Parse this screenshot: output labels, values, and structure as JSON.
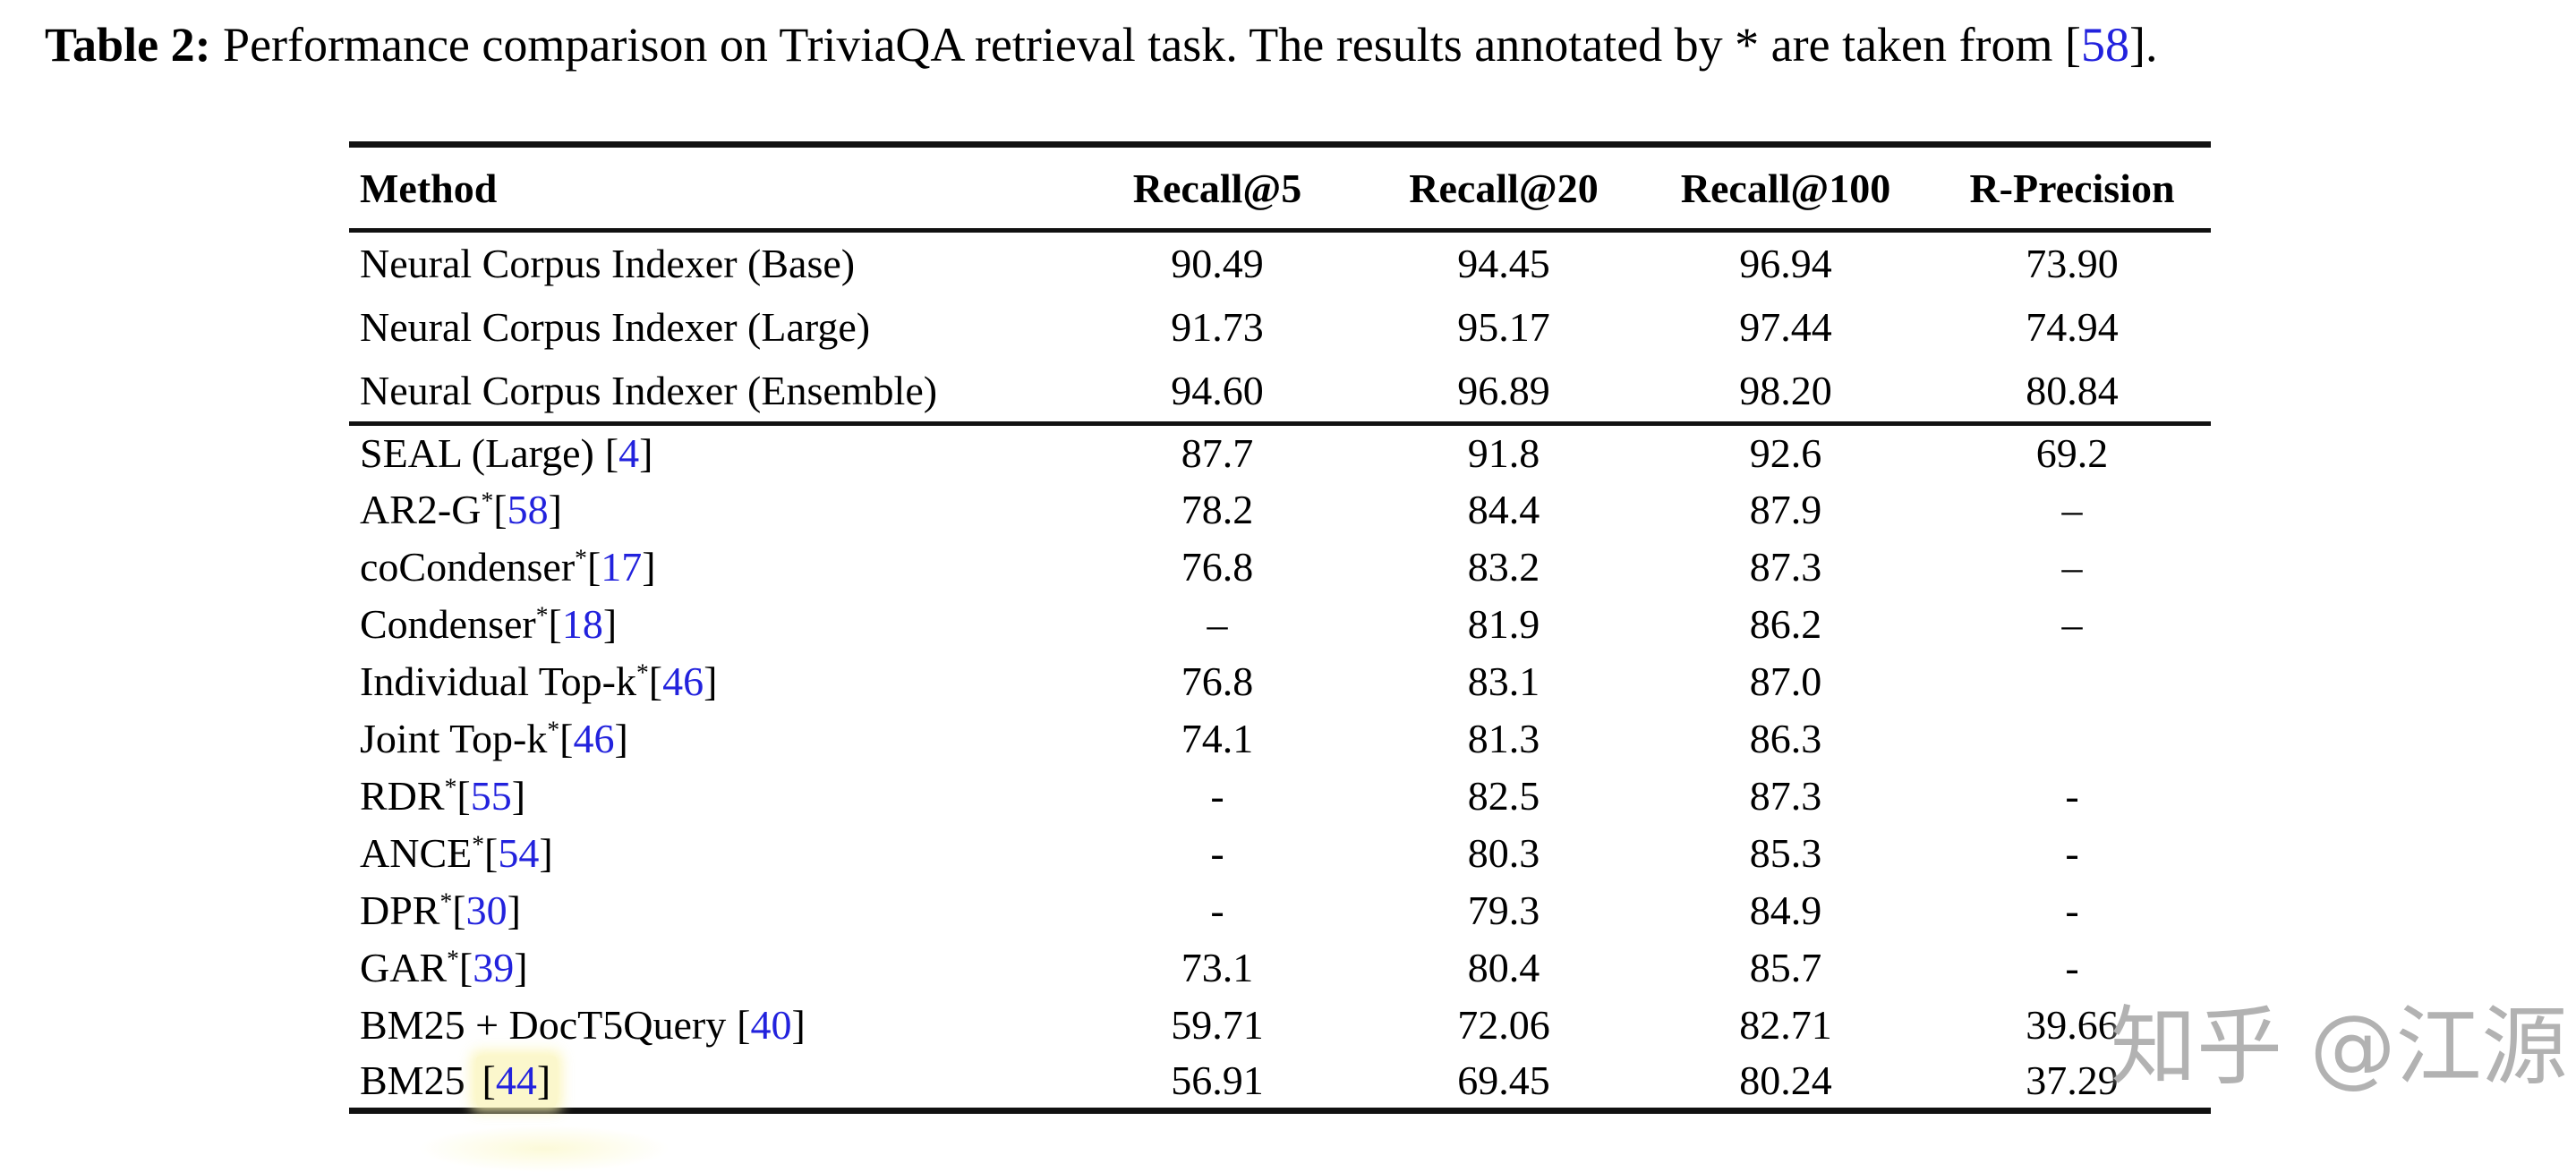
{
  "caption": {
    "label": "Table 2:",
    "before_cite": "Performance comparison on TriviaQA retrieval task. The results annotated by * are taken from ",
    "cite": "58",
    "after_cite": "."
  },
  "table": {
    "headers": [
      "Method",
      "Recall@5",
      "Recall@20",
      "Recall@100",
      "R-Precision"
    ],
    "groups": [
      {
        "rows": [
          {
            "name": "Neural Corpus Indexer (Base)",
            "sup": "",
            "cite": null,
            "spaced": false,
            "bold": false,
            "values_bold": false,
            "highlight": false,
            "values": [
              "90.49",
              "94.45",
              "96.94",
              "73.90"
            ]
          },
          {
            "name": "Neural Corpus Indexer (Large)",
            "sup": "",
            "cite": null,
            "spaced": false,
            "bold": false,
            "values_bold": false,
            "highlight": false,
            "values": [
              "91.73",
              "95.17",
              "97.44",
              "74.94"
            ]
          },
          {
            "name": "Neural Corpus Indexer (Ensemble)",
            "sup": "",
            "cite": null,
            "spaced": false,
            "bold": true,
            "values_bold": true,
            "highlight": false,
            "values": [
              "94.60",
              "96.89",
              "98.20",
              "80.84"
            ]
          }
        ]
      },
      {
        "rows": [
          {
            "name": "SEAL (Large)",
            "sup": "",
            "cite": "4",
            "spaced": true,
            "bold": false,
            "values_bold": true,
            "highlight": false,
            "values": [
              "87.7",
              "91.8",
              "92.6",
              "69.2"
            ]
          },
          {
            "name": "AR2-G",
            "sup": "*",
            "cite": "58",
            "spaced": false,
            "bold": false,
            "values_bold": false,
            "highlight": false,
            "values": [
              "78.2",
              "84.4",
              "87.9",
              "–"
            ]
          },
          {
            "name": "coCondenser",
            "sup": "*",
            "cite": "17",
            "spaced": false,
            "bold": false,
            "values_bold": false,
            "highlight": false,
            "values": [
              "76.8",
              "83.2",
              "87.3",
              "–"
            ]
          },
          {
            "name": "Condenser",
            "sup": "*",
            "cite": "18",
            "spaced": false,
            "bold": false,
            "values_bold": false,
            "highlight": false,
            "values": [
              "–",
              "81.9",
              "86.2",
              "–"
            ]
          },
          {
            "name": "Individual Top-k",
            "sup": "*",
            "cite": "46",
            "spaced": false,
            "bold": false,
            "values_bold": false,
            "highlight": false,
            "values": [
              "76.8",
              "83.1",
              "87.0",
              ""
            ]
          },
          {
            "name": "Joint Top-k",
            "sup": "*",
            "cite": "46",
            "spaced": false,
            "bold": false,
            "values_bold": false,
            "highlight": false,
            "values": [
              "74.1",
              "81.3",
              "86.3",
              ""
            ]
          },
          {
            "name": "RDR",
            "sup": "*",
            "cite": "55",
            "spaced": false,
            "bold": false,
            "values_bold": false,
            "highlight": false,
            "values": [
              "-",
              "82.5",
              "87.3",
              "-"
            ]
          },
          {
            "name": "ANCE",
            "sup": "*",
            "cite": "54",
            "spaced": false,
            "bold": false,
            "values_bold": false,
            "highlight": false,
            "values": [
              "-",
              "80.3",
              "85.3",
              "-"
            ]
          },
          {
            "name": "DPR",
            "sup": "*",
            "cite": "30",
            "spaced": false,
            "bold": false,
            "values_bold": false,
            "highlight": false,
            "values": [
              "-",
              "79.3",
              "84.9",
              "-"
            ]
          },
          {
            "name": "GAR",
            "sup": "*",
            "cite": "39",
            "spaced": false,
            "bold": false,
            "values_bold": false,
            "highlight": false,
            "values": [
              "73.1",
              "80.4",
              "85.7",
              "-"
            ]
          },
          {
            "name": "BM25 + DocT5Query",
            "sup": "",
            "cite": "40",
            "spaced": true,
            "bold": false,
            "values_bold": false,
            "highlight": false,
            "values": [
              "59.71",
              "72.06",
              "82.71",
              "39.66"
            ]
          },
          {
            "name": "BM25",
            "sup": "",
            "cite": "44",
            "spaced": true,
            "bold": false,
            "values_bold": false,
            "highlight": true,
            "values": [
              "56.91",
              "69.45",
              "80.24",
              "37.29"
            ]
          }
        ]
      }
    ]
  },
  "watermark": {
    "text": "知乎 @江源"
  },
  "colors": {
    "citation_blue": "#2222dd",
    "highlight_yellow": "#fbf7cc",
    "watermark_gray": "#b2b2b2",
    "rule_black": "#111111"
  }
}
